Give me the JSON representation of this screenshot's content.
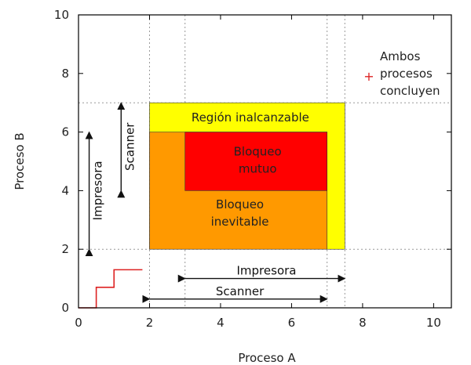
{
  "chart_data": {
    "type": "diagram",
    "xlabel": "Proceso A",
    "ylabel": "Proceso B",
    "xlim": [
      0,
      10.5
    ],
    "ylim": [
      0,
      10
    ],
    "x_ticks": [
      0,
      2,
      4,
      6,
      8,
      10
    ],
    "y_ticks": [
      0,
      2,
      4,
      6,
      8,
      10
    ],
    "grid_x": [
      2,
      3,
      7,
      7.5
    ],
    "grid_y": [
      2,
      7
    ],
    "regions": [
      {
        "id": "unreachable",
        "label": "Región inalcanzable",
        "x": [
          2,
          7.5
        ],
        "y": [
          2,
          7
        ],
        "color": "#ffff00"
      },
      {
        "id": "inevitable",
        "label_lines": [
          "Bloqueo",
          "inevitable"
        ],
        "x": [
          2,
          7
        ],
        "y": [
          2,
          6
        ],
        "color": "#ff9900"
      },
      {
        "id": "mutual",
        "label_lines": [
          "Bloqueo",
          "mutuo"
        ],
        "x": [
          3,
          7
        ],
        "y": [
          4,
          6
        ],
        "color": "#ff0000"
      }
    ],
    "trajectory": {
      "points": [
        [
          0,
          0
        ],
        [
          0.5,
          0
        ],
        [
          0.5,
          0.7
        ],
        [
          1,
          0.7
        ],
        [
          1,
          1.3
        ],
        [
          1.8,
          1.3
        ]
      ],
      "color": "#dd2222"
    },
    "arrows": [
      {
        "label": "Impresora",
        "orientation": "horizontal",
        "from": 3,
        "to": 7.5,
        "at": 1
      },
      {
        "label": "Scanner",
        "orientation": "horizontal",
        "from": 2,
        "to": 7,
        "at": 0.3
      },
      {
        "label": "Impresora",
        "orientation": "vertical",
        "from": 2,
        "to": 6,
        "at": 0.3
      },
      {
        "label": "Scanner",
        "orientation": "vertical",
        "from": 4,
        "to": 7,
        "at": 1.2
      }
    ],
    "legend": {
      "lines": [
        "Ambos",
        "procesos",
        "concluyen"
      ],
      "marker": "+",
      "marker_color": "#dd2222",
      "placement": "top-right"
    }
  }
}
